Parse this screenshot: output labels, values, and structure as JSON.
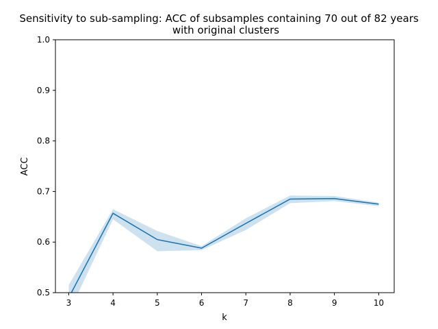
{
  "chart_data": {
    "type": "line",
    "title_line1": "Sensitivity to sub-sampling: ACC of subsamples containing 70 out of 82 years",
    "title_line2": "with original clusters",
    "xlabel": "k",
    "ylabel": "ACC",
    "x": [
      3,
      4,
      5,
      6,
      7,
      8,
      9,
      10
    ],
    "x_ticks": [
      "3",
      "4",
      "5",
      "6",
      "7",
      "8",
      "9",
      "10"
    ],
    "y_ticks": [
      "0.5",
      "0.6",
      "0.7",
      "0.8",
      "0.9",
      "1.0"
    ],
    "xlim": [
      2.7,
      10.35
    ],
    "ylim": [
      0.5,
      1.0
    ],
    "series": [
      {
        "values": [
          0.49,
          0.657,
          0.605,
          0.588,
          0.637,
          0.685,
          0.686,
          0.675
        ],
        "ci_lower": [
          0.46,
          0.645,
          0.582,
          0.584,
          0.624,
          0.677,
          0.681,
          0.671
        ],
        "ci_upper": [
          0.515,
          0.665,
          0.622,
          0.592,
          0.647,
          0.692,
          0.691,
          0.678
        ],
        "color": "#1f77b4",
        "band_color": "#1f77b4"
      }
    ],
    "grid": false,
    "legend": "none"
  }
}
